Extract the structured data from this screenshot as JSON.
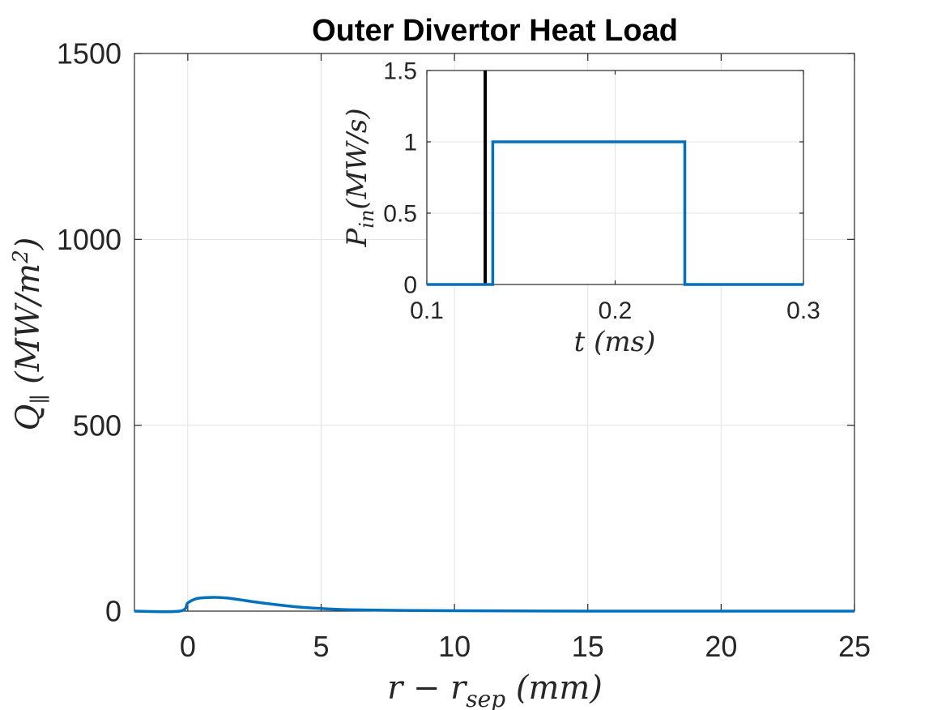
{
  "chart_data": [
    {
      "id": "main",
      "type": "line",
      "title": "Outer Divertor Heat Load",
      "xlabel": "r − r_sep (mm)",
      "ylabel": "Q_∥ (MW/m²)",
      "xlim": [
        -2,
        25
      ],
      "ylim": [
        0,
        1500
      ],
      "xticks": [
        0,
        5,
        10,
        15,
        20,
        25
      ],
      "yticks": [
        0,
        500,
        1000,
        1500
      ],
      "grid": true,
      "line_color": "#0072BD",
      "series": [
        {
          "x": [
            -2,
            -0.3,
            0,
            0.3,
            0.6,
            1,
            1.5,
            2,
            3,
            4,
            5,
            6,
            8,
            10,
            15,
            20,
            25
          ],
          "y": [
            0,
            0,
            22,
            33,
            36,
            37,
            35,
            30,
            20,
            12,
            7,
            4,
            2,
            1,
            0,
            0,
            0
          ]
        }
      ]
    },
    {
      "id": "inset",
      "type": "line",
      "xlabel": "t (ms)",
      "ylabel": "P_in (MW/s)",
      "xlim": [
        0.1,
        0.3
      ],
      "ylim": [
        0,
        1.5
      ],
      "xticks": [
        "0.1",
        "0.2",
        "0.3"
      ],
      "yticks": [
        "0",
        "0.5",
        "1",
        "1.5"
      ],
      "grid": true,
      "line_color": "#0072BD",
      "marker_line": {
        "x": 0.131,
        "color": "#000000"
      },
      "series": [
        {
          "x": [
            0.1,
            0.135,
            0.135,
            0.237,
            0.237,
            0.3
          ],
          "y": [
            0,
            0,
            1,
            1,
            0,
            0
          ]
        }
      ]
    }
  ]
}
